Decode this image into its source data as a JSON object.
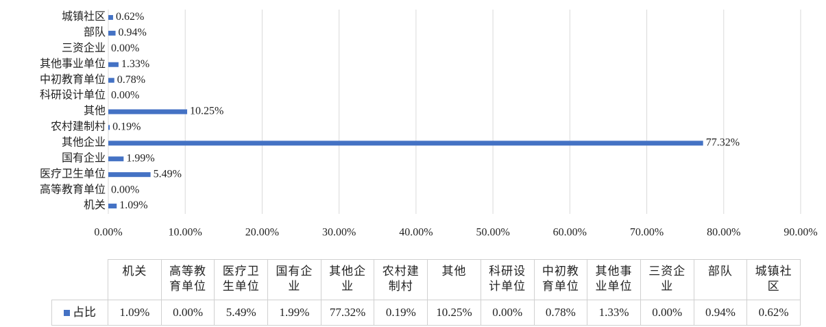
{
  "chart_data": {
    "type": "barh",
    "categories": [
      "机关",
      "高等教育单位",
      "医疗卫生单位",
      "国有企业",
      "其他企业",
      "农村建制村",
      "其他",
      "科研设计单位",
      "中初教育单位",
      "其他事业单位",
      "三资企业",
      "部队",
      "城镇社区"
    ],
    "series": [
      {
        "name": "占比",
        "color": "#4472c4",
        "values": [
          1.09,
          0,
          5.49,
          1.99,
          77.32,
          0.19,
          10.25,
          0,
          0.78,
          1.33,
          0,
          0.94,
          0.62
        ],
        "value_labels": [
          "1.09%",
          "0.00%",
          "5.49%",
          "1.99%",
          "77.32%",
          "0.19%",
          "10.25%",
          "0.00%",
          "0.78%",
          "1.33%",
          "0.00%",
          "0.94%",
          "0.62%"
        ]
      }
    ],
    "xlim": [
      0,
      90
    ],
    "xticks": [
      {
        "value": 0,
        "label": "0.00%"
      },
      {
        "value": 10,
        "label": "10.00%"
      },
      {
        "value": 20,
        "label": "20.00%"
      },
      {
        "value": 30,
        "label": "30.00%"
      },
      {
        "value": 40,
        "label": "40.00%"
      },
      {
        "value": 50,
        "label": "50.00%"
      },
      {
        "value": 60,
        "label": "60.00%"
      },
      {
        "value": 70,
        "label": "70.00%"
      },
      {
        "value": 80,
        "label": "80.00%"
      },
      {
        "value": 90,
        "label": "90.00%"
      }
    ],
    "grid": true,
    "data_table": true
  }
}
